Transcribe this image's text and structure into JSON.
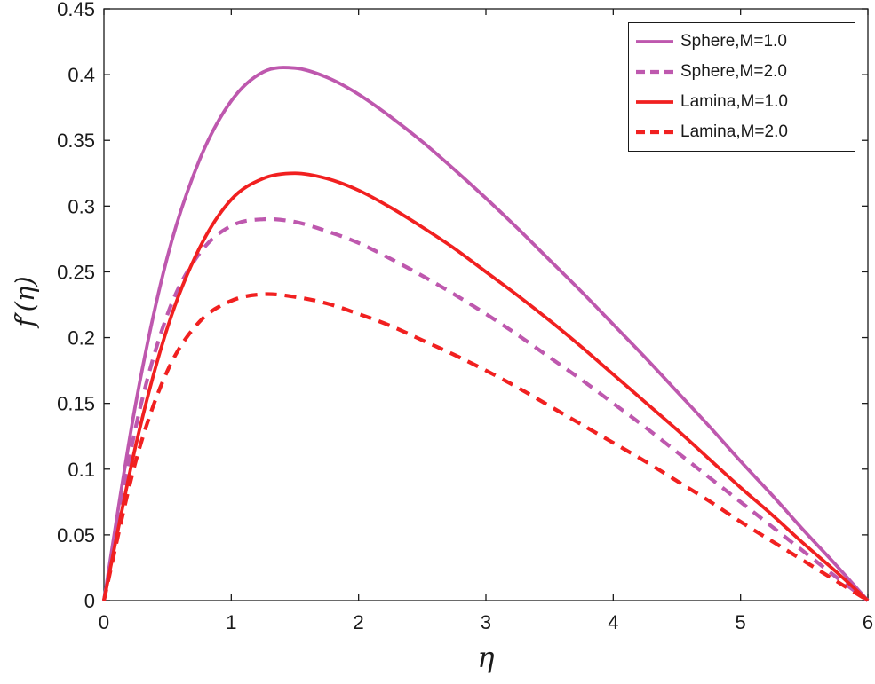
{
  "figure": {
    "background": "#ffffff",
    "axis_color": "#1a1a1a"
  },
  "chart_data": {
    "type": "line",
    "title": "",
    "xlabel": "η",
    "ylabel": "f′(η)",
    "xlim": [
      0,
      6
    ],
    "ylim": [
      0,
      0.45
    ],
    "x_ticks": [
      0,
      1,
      2,
      3,
      4,
      5,
      6
    ],
    "x_tick_labels": [
      "0",
      "1",
      "2",
      "3",
      "4",
      "5",
      "6"
    ],
    "y_ticks": [
      0,
      0.05,
      0.1,
      0.15,
      0.2,
      0.25,
      0.3,
      0.35,
      0.4,
      0.45
    ],
    "y_tick_labels": [
      "0",
      "0.05",
      "0.1",
      "0.15",
      "0.2",
      "0.25",
      "0.3",
      "0.35",
      "0.4",
      "0.45"
    ],
    "grid": false,
    "legend_position": "top-right",
    "x": [
      0,
      0.25,
      0.5,
      0.75,
      1,
      1.25,
      1.5,
      1.75,
      2,
      2.25,
      2.5,
      2.75,
      3,
      3.25,
      3.5,
      3.75,
      4,
      4.25,
      4.5,
      4.75,
      5,
      5.25,
      5.5,
      5.75,
      6
    ],
    "series": [
      {
        "name": "Sphere,M=1.0",
        "color": "#BE58AE",
        "style": "solid",
        "values": [
          0,
          0.15,
          0.262,
          0.335,
          0.38,
          0.402,
          0.405,
          0.398,
          0.385,
          0.368,
          0.349,
          0.328,
          0.306,
          0.283,
          0.259,
          0.235,
          0.21,
          0.185,
          0.159,
          0.133,
          0.106,
          0.08,
          0.053,
          0.027,
          0
        ]
      },
      {
        "name": "Sphere,M=2.0",
        "color": "#BE58AE",
        "style": "dashed",
        "values": [
          0,
          0.132,
          0.218,
          0.264,
          0.285,
          0.29,
          0.288,
          0.281,
          0.272,
          0.26,
          0.247,
          0.233,
          0.218,
          0.202,
          0.185,
          0.168,
          0.15,
          0.132,
          0.113,
          0.094,
          0.075,
          0.056,
          0.037,
          0.018,
          0
        ]
      },
      {
        "name": "Lamina,M=1.0",
        "color": "#F12020",
        "style": "solid",
        "values": [
          0,
          0.118,
          0.208,
          0.268,
          0.305,
          0.321,
          0.325,
          0.321,
          0.312,
          0.299,
          0.284,
          0.268,
          0.25,
          0.232,
          0.213,
          0.193,
          0.172,
          0.151,
          0.13,
          0.108,
          0.086,
          0.065,
          0.043,
          0.022,
          0
        ]
      },
      {
        "name": "Lamina,M=2.0",
        "color": "#F12020",
        "style": "dashed",
        "values": [
          0,
          0.106,
          0.175,
          0.212,
          0.228,
          0.233,
          0.231,
          0.226,
          0.218,
          0.209,
          0.198,
          0.187,
          0.175,
          0.162,
          0.148,
          0.134,
          0.12,
          0.106,
          0.091,
          0.076,
          0.06,
          0.045,
          0.03,
          0.015,
          0
        ]
      }
    ]
  }
}
